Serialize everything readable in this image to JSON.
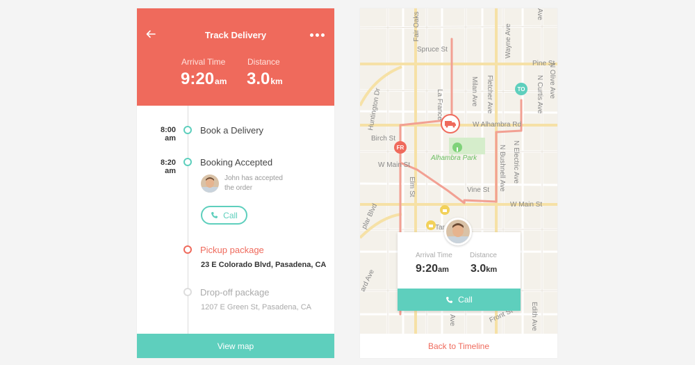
{
  "delivery_screen": {
    "title": "Track Delivery",
    "arrival": {
      "label": "Arrival Time",
      "value": "9:20",
      "unit": "am"
    },
    "distance": {
      "label": "Distance",
      "value": "3.0",
      "unit": "km"
    },
    "timeline": [
      {
        "time": "8:00",
        "period": "am",
        "label": "Book a Delivery",
        "state": "done"
      },
      {
        "time": "8:20",
        "period": "am",
        "label": "Booking Accepted",
        "state": "done",
        "note_line1": "John has accepted",
        "note_line2": "the order",
        "call_label": "Call"
      },
      {
        "label": "Pickup package",
        "address": "23 E Colorado Blvd, Pasadena, CA",
        "state": "current"
      },
      {
        "label": "Drop-off package",
        "address": "1207 E Green St, Pasadena, CA",
        "state": "pending"
      }
    ],
    "view_map_label": "View map"
  },
  "map_screen": {
    "streets": {
      "spruce": "Spruce St",
      "pine": "Pine St",
      "birch": "Birch St",
      "w_main": "W Main St",
      "w_main_right": "W Main St",
      "w_alhambra": "W Alhambra Rd",
      "vine": "Vine St",
      "fair_oaks": "Fair Oaks",
      "huntington": "Huntington Dr",
      "la_france": "La France",
      "milan": "Milan Ave",
      "fletcher": "Fletcher Ave",
      "wayne": "Wayne Ave",
      "olive": "N Olive Ave",
      "curtis": "N Curtis Ave",
      "electric": "N Electric Ave",
      "bushnell": "N Bushnell Ave",
      "elm": "Elm St",
      "poplar": "plar Blvd",
      "edith": "Edith Ave",
      "front": "Front St",
      "ard": "ard Ave",
      "ave_bottom": "Ave",
      "ave_top": "Ave"
    },
    "park_label": "Alhambra Park",
    "target_label": "Target",
    "marker_from": "FR",
    "marker_to": "TO",
    "card": {
      "arrival_label": "Arrival Time",
      "arrival_value": "9:20",
      "arrival_unit": "am",
      "distance_label": "Distance",
      "distance_value": "3.0",
      "distance_unit": "km",
      "call_label": "Call"
    },
    "back_label": "Back to Timeline"
  },
  "colors": {
    "accent_red": "#ef6a5c",
    "accent_teal": "#5ecfbd",
    "route": "#f2a093",
    "park": "#7fd27a"
  },
  "icons": [
    "back-arrow-icon",
    "more-icon",
    "phone-icon",
    "truck-icon",
    "tree-icon",
    "lock-icon"
  ]
}
